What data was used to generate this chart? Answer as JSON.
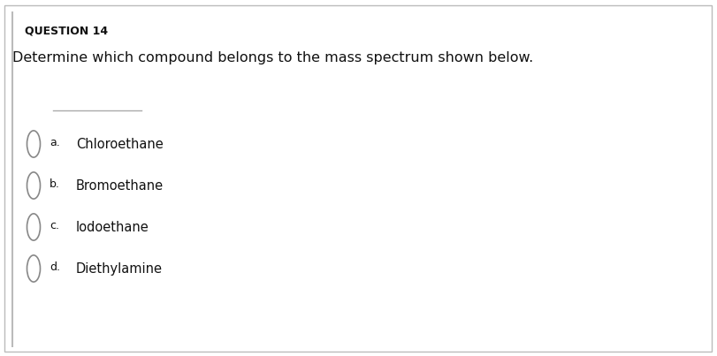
{
  "title": "QUESTION 14",
  "question": "Determine which compound belongs to the mass spectrum shown below.",
  "options": [
    {
      "letter": "a.",
      "text": "Chloroethane"
    },
    {
      "letter": "b.",
      "text": "Bromoethane"
    },
    {
      "letter": "c.",
      "text": "Iodoethane"
    },
    {
      "letter": "d.",
      "text": "Diethylamine"
    }
  ],
  "bg_color": "#ffffff",
  "border_color": "#bbbbbb",
  "title_fontsize": 9,
  "question_fontsize": 11.5,
  "option_letter_fontsize": 9,
  "option_text_fontsize": 10.5,
  "text_color": "#111111",
  "line_color": "#aaaaaa",
  "radio_color": "#888888",
  "left_line_color": "#bbbbbb"
}
